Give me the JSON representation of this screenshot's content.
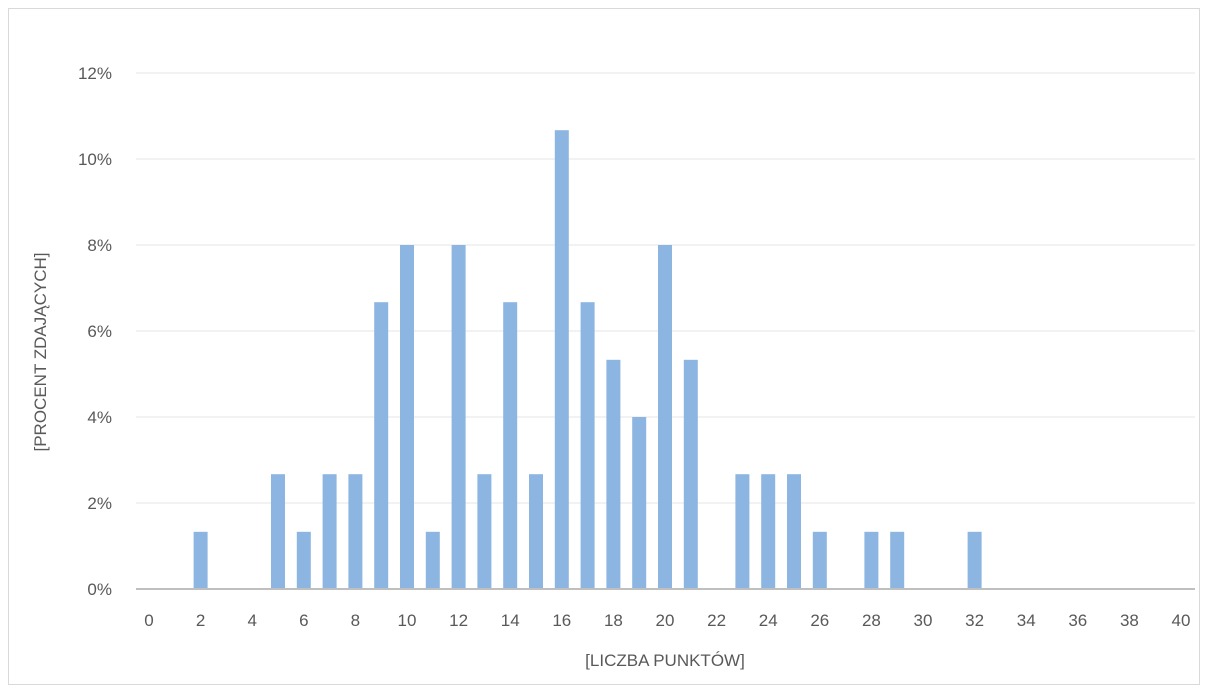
{
  "chart_data": {
    "type": "bar",
    "title": "",
    "xlabel": "[LICZBA PUNKTÓW]",
    "ylabel": "[PROCENT ZDAJĄCYCH]",
    "xlim": [
      0,
      40
    ],
    "ylim": [
      0,
      12
    ],
    "x_ticks": [
      "0",
      "2",
      "4",
      "6",
      "8",
      "10",
      "12",
      "14",
      "16",
      "18",
      "20",
      "22",
      "24",
      "26",
      "28",
      "30",
      "32",
      "34",
      "36",
      "38",
      "40"
    ],
    "y_ticks": [
      "0%",
      "2%",
      "4%",
      "6%",
      "8%",
      "10%",
      "12%"
    ],
    "y_unit": "%",
    "grid": true,
    "bar_color": "#8cb6e1",
    "series": [
      {
        "x": [
          0,
          1,
          2,
          3,
          4,
          5,
          6,
          7,
          8,
          9,
          10,
          11,
          12,
          13,
          14,
          15,
          16,
          17,
          18,
          19,
          20,
          21,
          22,
          23,
          24,
          25,
          26,
          27,
          28,
          29,
          30,
          31,
          32,
          33,
          34,
          35,
          36,
          37,
          38,
          39,
          40
        ],
        "values": [
          0,
          0,
          1.33,
          0,
          0,
          2.67,
          1.33,
          2.67,
          2.67,
          6.67,
          8.0,
          1.33,
          8.0,
          2.67,
          6.67,
          2.67,
          10.67,
          6.67,
          5.33,
          4.0,
          8.0,
          5.33,
          0,
          2.67,
          2.67,
          2.67,
          1.33,
          0,
          1.33,
          1.33,
          0,
          0,
          1.33,
          0,
          0,
          0,
          0,
          0,
          0,
          0,
          0
        ]
      }
    ]
  }
}
